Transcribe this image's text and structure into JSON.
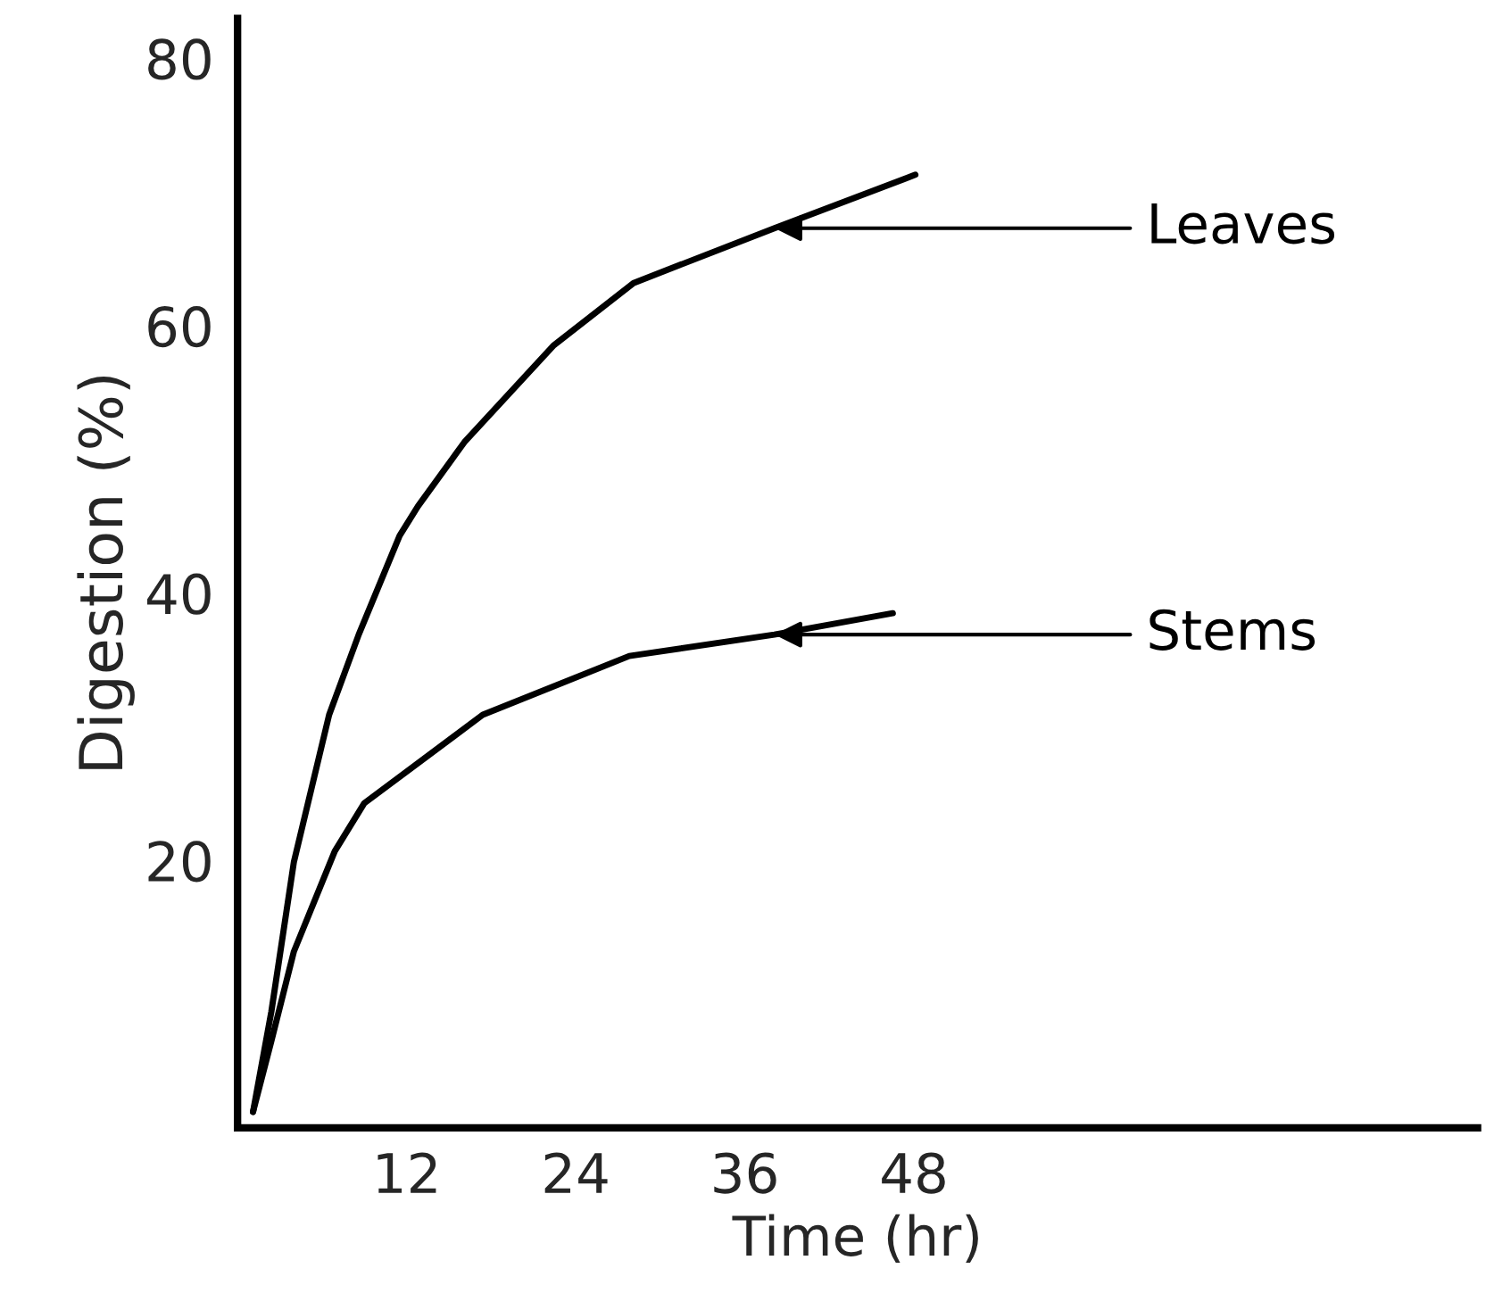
{
  "chart_data": {
    "type": "line",
    "xlabel": "Time (hr)",
    "ylabel": "Digestion (%)",
    "xlim": [
      0,
      88
    ],
    "ylim": [
      0,
      83
    ],
    "xticks": [
      12,
      24,
      36,
      48
    ],
    "yticks": [
      20,
      40,
      60,
      80
    ],
    "grid": false,
    "marker": "none",
    "line_style": "solid",
    "series": [
      {
        "name": "Leaves",
        "color": "#000000",
        "x": [
          1.1,
          2.4,
          4,
          6.5,
          8.6,
          11.5,
          12.8,
          16.1,
          22.4,
          28.1,
          38.1,
          48.1
        ],
        "values": [
          1.2,
          8.7,
          19.9,
          30.9,
          36.9,
          44.3,
          46.5,
          51.3,
          58.5,
          63.2,
          67.3,
          71.3
        ]
      },
      {
        "name": "Stems",
        "color": "#000000",
        "x": [
          1.1,
          2.4,
          4,
          6.9,
          9,
          17.4,
          27.8,
          38.1,
          46.5
        ],
        "values": [
          1.2,
          6.5,
          13.2,
          20.7,
          24.3,
          30.9,
          35.3,
          36.9,
          38.5
        ]
      }
    ]
  }
}
